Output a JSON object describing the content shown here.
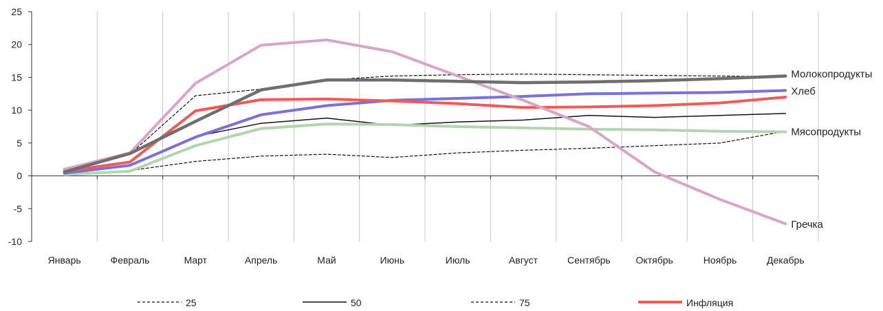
{
  "chart_data": {
    "type": "line",
    "title": "",
    "xlabel": "",
    "ylabel": "",
    "ylim": [
      -10,
      25
    ],
    "yticks": [
      -10,
      -5,
      0,
      5,
      10,
      15,
      20,
      25
    ],
    "grid": "vertical",
    "legend_placement": "bottom",
    "categories": [
      "Январь",
      "Февраль",
      "Март",
      "Апрель",
      "Май",
      "Июнь",
      "Июль",
      "Август",
      "Сентябрь",
      "Октябрь",
      "Ноябрь",
      "Декабрь"
    ],
    "series": [
      {
        "key": "p25",
        "name": "25",
        "color": "#111111",
        "width": 1.2,
        "dash": "4,3",
        "legend": true,
        "label": "",
        "values": [
          0.3,
          0.8,
          2.2,
          3.0,
          3.3,
          2.8,
          3.5,
          3.9,
          4.2,
          4.6,
          5.0,
          6.8
        ]
      },
      {
        "key": "p50",
        "name": "50",
        "color": "#111111",
        "width": 1.5,
        "dash": "",
        "legend": true,
        "label": "",
        "values": [
          0.5,
          1.5,
          6.0,
          8.0,
          8.8,
          7.7,
          8.2,
          8.5,
          9.2,
          8.9,
          9.2,
          9.5
        ]
      },
      {
        "key": "p75",
        "name": "75",
        "color": "#111111",
        "width": 1.2,
        "dash": "4,3",
        "legend": true,
        "label": "",
        "values": [
          0.6,
          3.3,
          12.2,
          13.2,
          14.6,
          15.2,
          15.4,
          15.5,
          15.4,
          15.3,
          15.2,
          15.1
        ]
      },
      {
        "key": "meat",
        "name": "Мясопродукты",
        "color": "#b2d5b0",
        "width": 4,
        "dash": "",
        "legend": false,
        "label": "Мясопродукты",
        "values": [
          0.2,
          0.7,
          4.6,
          7.2,
          7.9,
          7.8,
          7.5,
          7.3,
          7.1,
          7.0,
          6.8,
          6.7
        ]
      },
      {
        "key": "bread",
        "name": "Хлеб",
        "color": "#7b6fd8",
        "width": 4,
        "dash": "",
        "legend": false,
        "label": "Хлеб",
        "values": [
          0.4,
          1.6,
          5.9,
          9.3,
          10.7,
          11.5,
          11.8,
          12.1,
          12.5,
          12.6,
          12.7,
          13.0
        ]
      },
      {
        "key": "inflation",
        "name": "Инфляция",
        "color": "#f25a57",
        "width": 4,
        "dash": "",
        "legend": true,
        "label": "",
        "values": [
          0.7,
          2.1,
          9.9,
          11.6,
          11.7,
          11.4,
          11.0,
          10.4,
          10.5,
          10.7,
          11.1,
          12.0
        ]
      },
      {
        "key": "buckwheat",
        "name": "Гречка",
        "color": "#d9a5c6",
        "width": 4,
        "dash": "",
        "legend": false,
        "label": "Гречка",
        "values": [
          1.0,
          3.5,
          14.1,
          19.9,
          20.7,
          18.9,
          15.2,
          11.5,
          7.5,
          0.6,
          -3.6,
          -7.3
        ]
      },
      {
        "key": "dairy",
        "name": "Молокопродукты",
        "color": "#6e6e6e",
        "width": 4.5,
        "dash": "",
        "legend": false,
        "label": "Молокопродукты",
        "values": [
          0.6,
          3.4,
          8.3,
          13.1,
          14.6,
          14.6,
          14.4,
          14.2,
          14.3,
          14.5,
          14.8,
          15.2
        ]
      }
    ]
  }
}
